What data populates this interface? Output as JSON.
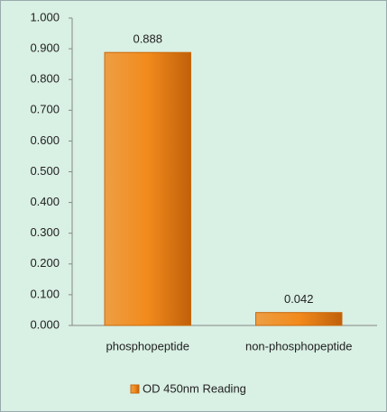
{
  "chart_data": {
    "type": "bar",
    "categories": [
      "phosphopeptide",
      "non-phosphopeptide"
    ],
    "series": [
      {
        "name": "OD 450nm Reading",
        "color": "#f28a1c",
        "values": [
          0.888,
          0.042
        ]
      }
    ],
    "ylim": [
      0,
      1
    ],
    "yticks": [
      {
        "value": 0,
        "label": "0.000"
      },
      {
        "value": 0.1,
        "label": "0.100"
      },
      {
        "value": 0.2,
        "label": "0.200"
      },
      {
        "value": 0.3,
        "label": "0.300"
      },
      {
        "value": 0.4,
        "label": "0.400"
      },
      {
        "value": 0.5,
        "label": "0.500"
      },
      {
        "value": 0.6,
        "label": "0.600"
      },
      {
        "value": 0.7,
        "label": "0.700"
      },
      {
        "value": 0.8,
        "label": "0.800"
      },
      {
        "value": 0.9,
        "label": "0.900"
      },
      {
        "value": 1,
        "label": "1.000"
      }
    ],
    "grid": false,
    "legend": "bottom"
  }
}
